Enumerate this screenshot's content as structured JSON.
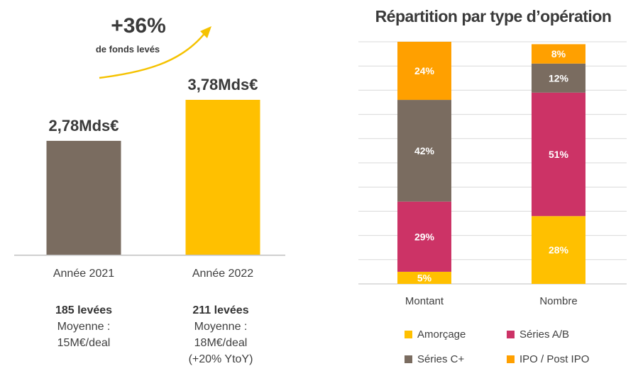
{
  "growth": {
    "value": "+36%",
    "caption": "de fonds levés"
  },
  "left_stats": [
    {
      "deals": "185 levées",
      "line1": "Moyenne :",
      "line2": "15M€/deal",
      "line3": ""
    },
    {
      "deals": "211 levées",
      "line1": "Moyenne :",
      "line2": "18M€/deal",
      "line3": "(+20% YtoY)"
    }
  ],
  "colors": {
    "brown": "#7a6c60",
    "yellow": "#ffc000",
    "crimson": "#cc3366",
    "orange": "#ffa000",
    "arrow": "#f5c200"
  },
  "chart_data": [
    {
      "type": "bar",
      "title": "",
      "categories": [
        "Année 2021",
        "Année 2022"
      ],
      "values": [
        2.78,
        3.78
      ],
      "value_labels": [
        "2,78Mds€",
        "3,78Mds€"
      ],
      "unit": "Mds€",
      "bar_colors": [
        "#7a6c60",
        "#ffc000"
      ],
      "xlabel": "",
      "ylabel": "",
      "ylim": [
        0,
        3.78
      ],
      "grid": false
    },
    {
      "type": "bar",
      "stacked": true,
      "title": "Répartition par type d’opération",
      "categories": [
        "Montant",
        "Nombre"
      ],
      "series": [
        {
          "name": "Amorçage",
          "values": [
            5,
            28
          ],
          "color": "#ffc000",
          "labels": [
            "5%",
            "28%"
          ]
        },
        {
          "name": "Séries A/B",
          "values": [
            29,
            51
          ],
          "color": "#cc3366",
          "labels": [
            "29%",
            "51%"
          ]
        },
        {
          "name": "Séries C+",
          "values": [
            42,
            12
          ],
          "color": "#7a6c60",
          "labels": [
            "42%",
            "12%"
          ]
        },
        {
          "name": "IPO / Post IPO",
          "values": [
            24,
            8
          ],
          "color": "#ffa000",
          "labels": [
            "24%",
            "8%"
          ]
        }
      ],
      "ylim": [
        0,
        100
      ],
      "grid": true,
      "legend_position": "bottom"
    }
  ]
}
